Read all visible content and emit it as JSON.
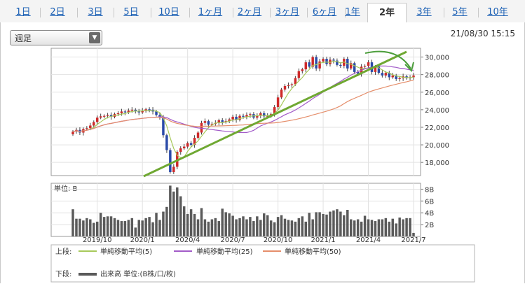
{
  "tabs": [
    {
      "label": "1日"
    },
    {
      "label": "2日"
    },
    {
      "label": "3日"
    },
    {
      "label": "5日"
    },
    {
      "label": "10日"
    },
    {
      "label": "1ヶ月"
    },
    {
      "label": "2ヶ月"
    },
    {
      "label": "3ヶ月"
    },
    {
      "label": "6ヶ月"
    },
    {
      "label": "1年"
    },
    {
      "label": "2年"
    },
    {
      "label": "3年"
    },
    {
      "label": "5年"
    },
    {
      "label": "10年"
    }
  ],
  "active_tab": "2年",
  "period_select": {
    "value": "週足"
  },
  "timestamp": "21/08/30 15:15",
  "chart_data": [
    {
      "type": "candlestick",
      "title": "",
      "x_ticks": [
        "2019/10",
        "2020/1",
        "2020/4",
        "2020/7",
        "2020/10",
        "2021/1",
        "2021/4",
        "2021/7"
      ],
      "y_ticks": [
        "30,000",
        "28,000",
        "26,000",
        "24,000",
        "22,000",
        "20,000",
        "18,000"
      ],
      "ylim": [
        16500,
        31000
      ],
      "close": [
        21500,
        21700,
        21400,
        21800,
        21900,
        22200,
        22600,
        23100,
        23250,
        23300,
        23400,
        23200,
        23500,
        23600,
        23800,
        23700,
        23900,
        24000,
        23850,
        23700,
        23900,
        24050,
        24000,
        23800,
        23400,
        23100,
        21100,
        19400,
        16900,
        17500,
        19200,
        19600,
        19800,
        20200,
        20000,
        20800,
        21400,
        22500,
        22700,
        22300,
        22400,
        22500,
        22800,
        22600,
        22700,
        22900,
        23200,
        22850,
        23300,
        23200,
        23400,
        23500,
        23100,
        23300,
        23600,
        23250,
        23300,
        23500,
        24300,
        25400,
        26300,
        26700,
        26800,
        26900,
        27600,
        28400,
        28600,
        29400,
        28900,
        30000,
        28700,
        29500,
        29800,
        29200,
        29700,
        29600,
        29100,
        29000,
        29800,
        28700,
        29300,
        28300,
        28100,
        28900,
        29000,
        29400,
        28300,
        28900,
        28200,
        27900,
        28200,
        27700,
        27900,
        27500,
        27600,
        27800,
        27600,
        27700,
        27900
      ],
      "wick_ranges": "approximate",
      "series": [
        {
          "name": "単純移動平均(5)",
          "color": "#a7c95a"
        },
        {
          "name": "単純移動平均(25)",
          "color": "#a25bc8"
        },
        {
          "name": "単純移動平均(50)",
          "color": "#e58e6b"
        }
      ],
      "annotations": [
        "green upward trend line",
        "green curved arrow"
      ]
    },
    {
      "type": "bar",
      "title": "",
      "unit_label": "単位: B",
      "y_ticks": [
        "8B",
        "6B",
        "4B",
        "2B"
      ],
      "ylim": [
        0,
        9
      ],
      "values": [
        4.6,
        3.0,
        3.0,
        2.7,
        3.1,
        2.9,
        2.3,
        2.5,
        4.0,
        3.3,
        3.4,
        3.4,
        3.1,
        2.8,
        2.6,
        2.6,
        2.8,
        3.1,
        1.5,
        2.8,
        2.7,
        3.1,
        3.3,
        2.4,
        4.0,
        2.8,
        4.2,
        5.0,
        8.6,
        7.6,
        8.3,
        6.8,
        5.1,
        3.8,
        4.6,
        3.8,
        2.9,
        4.8,
        2.9,
        2.5,
        2.9,
        3.1,
        2.6,
        4.7,
        4.1,
        3.9,
        3.5,
        2.9,
        3.1,
        3.4,
        2.9,
        3.3,
        2.6,
        3.4,
        2.8,
        3.9,
        3.6,
        2.7,
        2.4,
        3.3,
        3.6,
        3.0,
        2.8,
        2.7,
        2.5,
        3.1,
        3.4,
        2.5,
        4.0,
        2.9,
        4.1,
        4.1,
        3.8,
        3.7,
        4.2,
        4.4,
        4.6,
        4.2,
        3.6,
        4.5,
        2.9,
        2.7,
        2.9,
        2.5,
        3.5,
        2.9,
        2.8,
        2.6,
        2.9,
        2.9,
        3.1,
        2.5,
        3.0,
        2.2,
        3.2,
        2.9,
        3.1,
        3.1,
        0.6
      ]
    }
  ],
  "legend": {
    "upper_label": "上段:",
    "items": [
      {
        "label": "単純移動平均(5)",
        "color": "#a7c95a"
      },
      {
        "label": "単純移動平均(25)",
        "color": "#a25bc8"
      },
      {
        "label": "単純移動平均(50)",
        "color": "#e58e6b"
      }
    ],
    "lower_label": "下段:",
    "lower_item": {
      "label": "出来高 単位:(B株/口/枚)",
      "color": "#5a5a5a"
    }
  }
}
